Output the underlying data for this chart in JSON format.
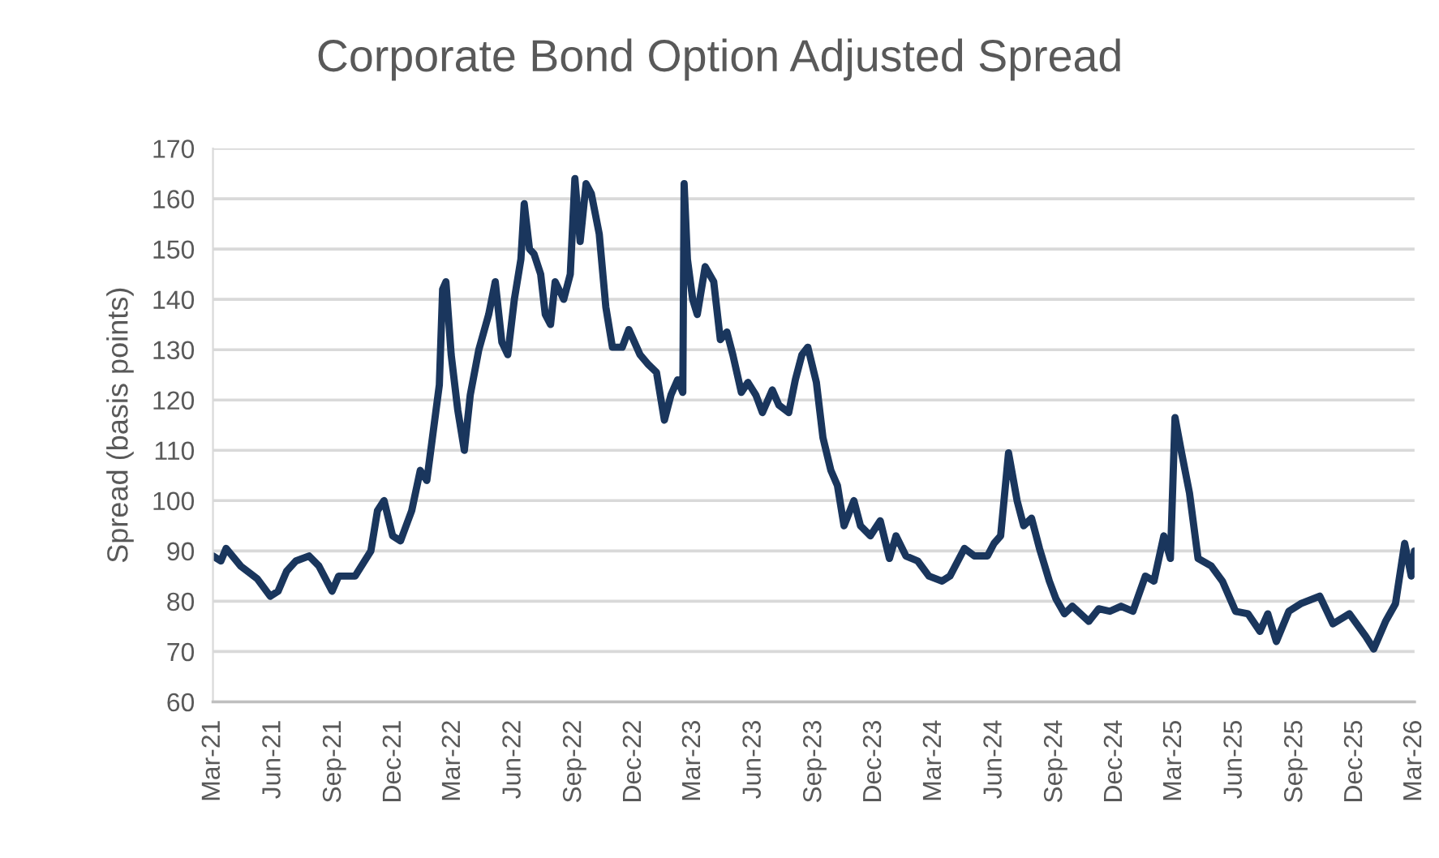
{
  "chart_data": {
    "type": "line",
    "title": "Corporate Bond Option Adjusted Spread",
    "ylabel": "Spread (basis points)",
    "x": [
      "2021-03-01",
      "2021-03-13",
      "2021-03-21",
      "2021-04-12",
      "2021-05-07",
      "2021-05-27",
      "2021-06-08",
      "2021-06-21",
      "2021-07-05",
      "2021-07-25",
      "2021-08-09",
      "2021-08-29",
      "2021-09-08",
      "2021-10-03",
      "2021-10-27",
      "2021-11-06",
      "2021-11-16",
      "2021-11-29",
      "2021-12-11",
      "2021-12-28",
      "2022-01-10",
      "2022-01-20",
      "2022-01-30",
      "2022-02-08",
      "2022-02-13",
      "2022-02-18",
      "2022-02-26",
      "2022-03-08",
      "2022-03-18",
      "2022-03-27",
      "2022-04-09",
      "2022-04-24",
      "2022-05-04",
      "2022-05-14",
      "2022-05-23",
      "2022-06-02",
      "2022-06-12",
      "2022-06-17",
      "2022-06-25",
      "2022-07-02",
      "2022-07-12",
      "2022-07-19",
      "2022-07-27",
      "2022-08-03",
      "2022-08-16",
      "2022-08-26",
      "2022-09-02",
      "2022-09-10",
      "2022-09-19",
      "2022-09-27",
      "2022-10-09",
      "2022-10-19",
      "2022-10-29",
      "2022-11-13",
      "2022-11-23",
      "2022-12-10",
      "2022-12-23",
      "2023-01-04",
      "2023-01-16",
      "2023-01-26",
      "2023-02-05",
      "2023-02-13",
      "2023-02-15",
      "2023-02-20",
      "2023-02-28",
      "2023-03-07",
      "2023-03-19",
      "2023-04-01",
      "2023-04-11",
      "2023-04-21",
      "2023-04-30",
      "2023-05-13",
      "2023-05-23",
      "2023-06-04",
      "2023-06-14",
      "2023-06-29",
      "2023-07-09",
      "2023-07-24",
      "2023-08-03",
      "2023-08-13",
      "2023-08-22",
      "2023-09-04",
      "2023-09-14",
      "2023-09-26",
      "2023-10-06",
      "2023-10-16",
      "2023-10-31",
      "2023-11-10",
      "2023-11-25",
      "2023-12-10",
      "2023-12-24",
      "2024-01-03",
      "2024-01-18",
      "2024-02-05",
      "2024-02-22",
      "2024-03-13",
      "2024-03-25",
      "2024-04-16",
      "2024-05-01",
      "2024-05-21",
      "2024-05-31",
      "2024-06-10",
      "2024-06-22",
      "2024-07-05",
      "2024-07-15",
      "2024-07-27",
      "2024-08-08",
      "2024-08-23",
      "2024-09-02",
      "2024-09-15",
      "2024-09-27",
      "2024-10-22",
      "2024-11-06",
      "2024-11-23",
      "2024-12-10",
      "2024-12-28",
      "2025-01-16",
      "2025-01-29",
      "2025-02-13",
      "2025-02-23",
      "2025-03-02",
      "2025-03-12",
      "2025-03-24",
      "2025-04-06",
      "2025-04-26",
      "2025-05-13",
      "2025-06-02",
      "2025-06-21",
      "2025-07-09",
      "2025-07-21",
      "2025-08-03",
      "2025-08-22",
      "2025-09-09",
      "2025-10-08",
      "2025-10-28",
      "2025-11-22",
      "2025-12-17",
      "2025-12-29",
      "2026-01-16",
      "2026-01-31",
      "2026-02-14",
      "2026-02-24",
      "2026-03-01"
    ],
    "series": [
      {
        "color": "#1a365d",
        "values": [
          89,
          88,
          90.5,
          87,
          84.5,
          81,
          82,
          86,
          88,
          89,
          87,
          82,
          85,
          85,
          90,
          98,
          100,
          93,
          92,
          98,
          106,
          104,
          114,
          123,
          142,
          143.5,
          129,
          118,
          110,
          121,
          130,
          137,
          143.5,
          131.5,
          129,
          140,
          148,
          159,
          150,
          149,
          145,
          137,
          135,
          143.5,
          140,
          145,
          164,
          151.5,
          163,
          161,
          153,
          138.5,
          130.5,
          130.5,
          134,
          129,
          127,
          125.5,
          116,
          121,
          124,
          121.5,
          163,
          148,
          140,
          137,
          146.5,
          143.5,
          132,
          133.5,
          129,
          121.5,
          123.5,
          121,
          117.5,
          122,
          119,
          117.5,
          124,
          129,
          130.5,
          123.5,
          112.5,
          106,
          103,
          95,
          100,
          95,
          93,
          96,
          88.5,
          93,
          89,
          88,
          85,
          84,
          85,
          90.5,
          89,
          89,
          91.5,
          93,
          109.5,
          100,
          95,
          96.5,
          90.5,
          84,
          80.5,
          77.5,
          79,
          76,
          78.5,
          78,
          79,
          78,
          85,
          84,
          93,
          88.5,
          116.5,
          109.5,
          101.5,
          88.5,
          87,
          84,
          78,
          77.5,
          74,
          77.5,
          72,
          78,
          79.5,
          81,
          75.5,
          77.5,
          73,
          70.5,
          76,
          79.5,
          91.5,
          85,
          90
        ]
      }
    ],
    "xlim": [
      "2021-03-01",
      "2026-03-01"
    ],
    "xticks": [
      {
        "value": "2021-03-01",
        "label": "Mar-21"
      },
      {
        "value": "2021-06-01",
        "label": "Jun-21"
      },
      {
        "value": "2021-09-01",
        "label": "Sep-21"
      },
      {
        "value": "2021-12-01",
        "label": "Dec-21"
      },
      {
        "value": "2022-03-01",
        "label": "Mar-22"
      },
      {
        "value": "2022-06-01",
        "label": "Jun-22"
      },
      {
        "value": "2022-09-01",
        "label": "Sep-22"
      },
      {
        "value": "2022-12-01",
        "label": "Dec-22"
      },
      {
        "value": "2023-03-01",
        "label": "Mar-23"
      },
      {
        "value": "2023-06-01",
        "label": "Jun-23"
      },
      {
        "value": "2023-09-01",
        "label": "Sep-23"
      },
      {
        "value": "2023-12-01",
        "label": "Dec-23"
      },
      {
        "value": "2024-03-01",
        "label": "Mar-24"
      },
      {
        "value": "2024-06-01",
        "label": "Jun-24"
      },
      {
        "value": "2024-09-01",
        "label": "Sep-24"
      },
      {
        "value": "2024-12-01",
        "label": "Dec-24"
      },
      {
        "value": "2025-03-01",
        "label": "Mar-25"
      },
      {
        "value": "2025-06-01",
        "label": "Jun-25"
      },
      {
        "value": "2025-09-01",
        "label": "Sep-25"
      },
      {
        "value": "2025-12-01",
        "label": "Dec-25"
      },
      {
        "value": "2026-03-01",
        "label": "Mar-26"
      }
    ],
    "ylim": [
      60,
      170
    ],
    "yticks": [
      60,
      70,
      80,
      90,
      100,
      110,
      120,
      130,
      140,
      150,
      160,
      170
    ],
    "grid": "y",
    "line_style": "solid",
    "marker": "none",
    "legend": false
  }
}
